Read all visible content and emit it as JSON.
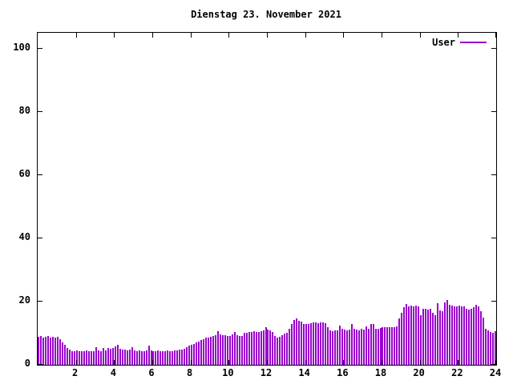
{
  "chart_data": {
    "type": "bar",
    "title": "Dienstag 23. November 2021",
    "xlabel": "",
    "ylabel": "",
    "xlim": [
      0,
      24
    ],
    "ylim": [
      0,
      105
    ],
    "x_ticks": [
      2,
      4,
      6,
      8,
      10,
      12,
      14,
      16,
      18,
      20,
      22,
      24
    ],
    "y_ticks": [
      0,
      20,
      40,
      60,
      80,
      100
    ],
    "grid": false,
    "legend_position": "top-right-inside",
    "x_unit": "hour-of-day",
    "sample_interval_hours": 0.125,
    "bar_color": "#9900cc",
    "axis_color": "#000000",
    "background_color": "#ffffff",
    "series": [
      {
        "name": "User",
        "color": "#9900cc",
        "values": [
          8.8,
          9.1,
          8.7,
          8.9,
          9.2,
          8.7,
          8.9,
          8.6,
          8.8,
          8.1,
          7.2,
          6.3,
          5.4,
          4.7,
          4.4,
          4.3,
          4.5,
          4.2,
          4.4,
          4.3,
          4.5,
          4.2,
          4.4,
          4.3,
          5.5,
          4.5,
          4.4,
          5.3,
          4.6,
          5.4,
          5.0,
          5.2,
          5.8,
          6.2,
          5.0,
          4.8,
          4.7,
          4.6,
          4.8,
          5.6,
          4.6,
          4.4,
          4.5,
          4.4,
          4.3,
          4.5,
          6.0,
          4.5,
          4.4,
          4.3,
          4.5,
          4.4,
          4.3,
          4.4,
          4.5,
          4.3,
          4.4,
          4.6,
          4.5,
          4.7,
          4.8,
          5.0,
          5.6,
          6.0,
          6.2,
          6.6,
          7.0,
          7.4,
          7.8,
          8.2,
          8.5,
          8.7,
          8.8,
          9.2,
          9.4,
          10.5,
          9.5,
          9.4,
          9.3,
          9.0,
          9.2,
          9.5,
          10.4,
          9.4,
          9.0,
          9.2,
          10.0,
          10.2,
          10.4,
          10.3,
          10.5,
          10.4,
          10.3,
          10.5,
          11.0,
          11.8,
          11.2,
          11.0,
          10.4,
          9.0,
          8.6,
          8.8,
          9.4,
          9.8,
          10.0,
          11.5,
          13.0,
          14.2,
          14.6,
          14.0,
          13.6,
          13.0,
          12.8,
          13.0,
          13.2,
          13.4,
          13.3,
          13.2,
          13.4,
          13.3,
          13.2,
          12.0,
          10.8,
          10.6,
          10.8,
          11.0,
          12.4,
          11.4,
          11.2,
          11.0,
          11.2,
          13.0,
          11.4,
          11.2,
          11.0,
          11.3,
          11.2,
          12.2,
          11.4,
          12.8,
          12.9,
          11.5,
          11.4,
          11.6,
          11.8,
          12.0,
          12.0,
          11.9,
          12.0,
          12.0,
          12.1,
          14.8,
          16.5,
          18.3,
          19.3,
          18.5,
          18.6,
          18.4,
          18.8,
          18.5,
          15.8,
          17.6,
          17.8,
          17.5,
          17.7,
          16.4,
          15.6,
          19.4,
          17.2,
          17.0,
          19.8,
          20.5,
          19.0,
          18.6,
          18.5,
          18.4,
          18.6,
          18.5,
          18.4,
          17.6,
          17.4,
          17.6,
          18.2,
          19.0,
          18.4,
          17.0,
          15.0,
          11.5,
          10.8,
          10.4,
          10.2,
          10.5
        ]
      }
    ]
  }
}
